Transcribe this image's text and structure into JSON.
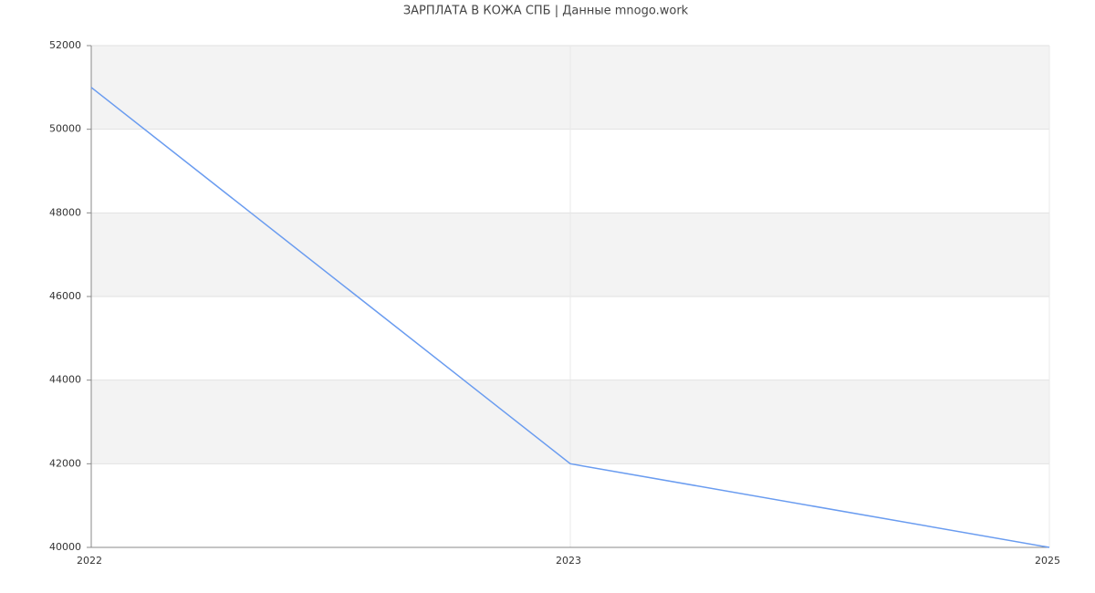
{
  "chart_data": {
    "type": "line",
    "title": "ЗАРПЛАТА В КОЖА СПБ | Данные mnogo.work",
    "categories": [
      "2022",
      "2023",
      "2025"
    ],
    "series": [
      {
        "name": "ЗАРПЛАТА",
        "color": "#6a9cf0",
        "values": [
          51000,
          42000,
          40000
        ]
      }
    ],
    "ylim": [
      40000,
      52000
    ],
    "yticks": [
      40000,
      42000,
      44000,
      46000,
      48000,
      50000,
      52000
    ],
    "grid": true,
    "banded": true
  }
}
